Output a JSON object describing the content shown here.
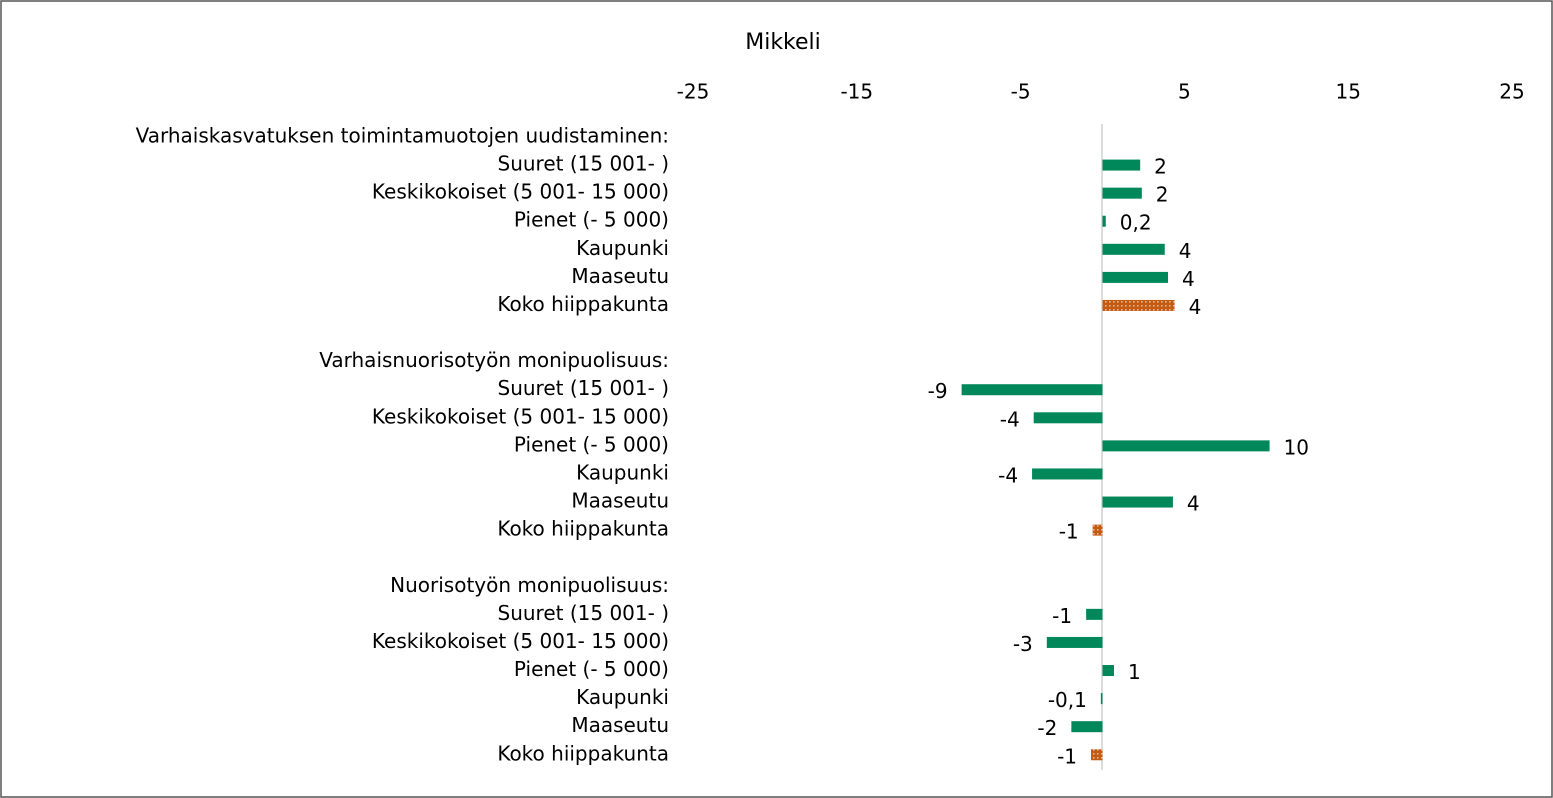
{
  "chart_data": {
    "type": "hbar",
    "title": "Mikkeli",
    "categories": [
      "Varhaiskasvatuksen toimintamuotojen uudistaminen:",
      "Suuret (15 001- )",
      "Keskikokoiset (5 001- 15 000)",
      "Pienet (- 5 000)",
      "Kaupunki",
      "Maaseutu",
      "Koko hiippakunta",
      null,
      "Varhaisnuorisotyön monipuolisuus:",
      "Suuret (15 001- )",
      "Keskikokoiset (5 001- 15 000)",
      "Pienet (- 5 000)",
      "Kaupunki",
      "Maaseutu",
      "Koko hiippakunta",
      null,
      "Nuorisotyön monipuolisuus:",
      "Suuret (15 001- )",
      "Keskikokoiset (5 001- 15 000)",
      "Pienet (- 5 000)",
      "Kaupunki",
      "Maaseutu",
      "Koko hiippakunta"
    ],
    "values": [
      null,
      2.3,
      2.4,
      0.2,
      3.8,
      4.0,
      4.4,
      null,
      null,
      -8.6,
      -4.2,
      10.2,
      -4.3,
      4.3,
      -0.6,
      null,
      null,
      -1.0,
      -3.4,
      0.7,
      -0.1,
      -1.9,
      -0.7
    ],
    "value_labels": [
      null,
      "2",
      "2",
      "0,2",
      "4",
      "4",
      "4",
      null,
      null,
      "-9",
      "-4",
      "10",
      "-4",
      "4",
      "-1",
      null,
      null,
      "-1",
      "-3",
      "1",
      "-0,1",
      "-2",
      "-1"
    ],
    "colors": [
      null,
      "#00875a",
      "#00875a",
      "#00875a",
      "#00875a",
      "#00875a",
      "#c55a11",
      null,
      null,
      "#00875a",
      "#00875a",
      "#00875a",
      "#00875a",
      "#00875a",
      "#c55a11",
      null,
      null,
      "#00875a",
      "#00875a",
      "#00875a",
      "#00875a",
      "#00875a",
      "#c55a11"
    ],
    "xlim": [
      -25,
      25
    ],
    "xticks": [
      -25,
      -15,
      -5,
      5,
      15,
      25
    ]
  }
}
